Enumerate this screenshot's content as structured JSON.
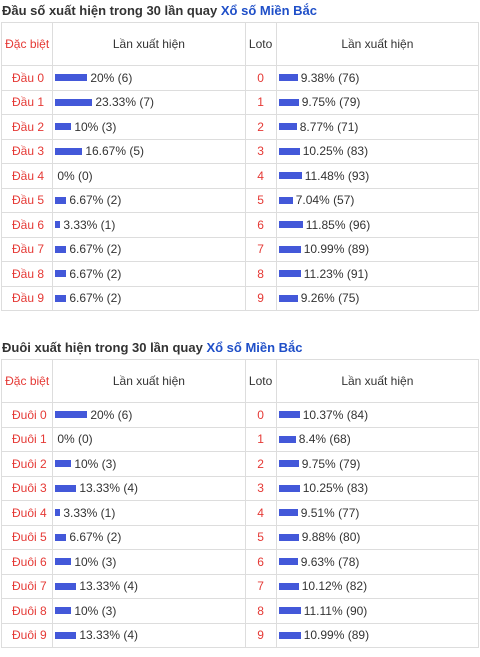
{
  "colors": {
    "label_red": "#e53935",
    "bar_blue": "#4358d9",
    "link_blue": "#1f4fc8",
    "border": "#dddddd"
  },
  "sections": [
    {
      "title_prefix": "Đầu số xuất hiện trong 30 lần quay",
      "title_link": "Xổ số Miền Bắc",
      "headers": {
        "col1": "Đặc biệt",
        "col2": "Lần xuất hiện",
        "col3": "Loto",
        "col4": "Lần xuất hiện"
      },
      "rows": [
        {
          "label": "Đầu 0",
          "pct": 20,
          "text": "20% (6)",
          "loto": "0",
          "pct2": 9.38,
          "text2": "9.38% (76)"
        },
        {
          "label": "Đầu 1",
          "pct": 23.33,
          "text": "23.33% (7)",
          "loto": "1",
          "pct2": 9.75,
          "text2": "9.75% (79)"
        },
        {
          "label": "Đầu 2",
          "pct": 10,
          "text": "10% (3)",
          "loto": "2",
          "pct2": 8.77,
          "text2": "8.77% (71)"
        },
        {
          "label": "Đầu 3",
          "pct": 16.67,
          "text": "16.67% (5)",
          "loto": "3",
          "pct2": 10.25,
          "text2": "10.25% (83)"
        },
        {
          "label": "Đầu 4",
          "pct": 0,
          "text": "0% (0)",
          "loto": "4",
          "pct2": 11.48,
          "text2": "11.48% (93)"
        },
        {
          "label": "Đầu 5",
          "pct": 6.67,
          "text": "6.67% (2)",
          "loto": "5",
          "pct2": 7.04,
          "text2": "7.04% (57)"
        },
        {
          "label": "Đầu 6",
          "pct": 3.33,
          "text": "3.33% (1)",
          "loto": "6",
          "pct2": 11.85,
          "text2": "11.85% (96)"
        },
        {
          "label": "Đầu 7",
          "pct": 6.67,
          "text": "6.67% (2)",
          "loto": "7",
          "pct2": 10.99,
          "text2": "10.99% (89)"
        },
        {
          "label": "Đầu 8",
          "pct": 6.67,
          "text": "6.67% (2)",
          "loto": "8",
          "pct2": 11.23,
          "text2": "11.23% (91)"
        },
        {
          "label": "Đầu 9",
          "pct": 6.67,
          "text": "6.67% (2)",
          "loto": "9",
          "pct2": 9.26,
          "text2": "9.26% (75)"
        }
      ]
    },
    {
      "title_prefix": "Đuôi xuất hiện trong 30 lần quay",
      "title_link": "Xổ số Miền Bắc",
      "headers": {
        "col1": "Đặc biệt",
        "col2": "Lần xuất hiện",
        "col3": "Loto",
        "col4": "Lần xuất hiện"
      },
      "rows": [
        {
          "label": "Đuôi 0",
          "pct": 20,
          "text": "20% (6)",
          "loto": "0",
          "pct2": 10.37,
          "text2": "10.37% (84)"
        },
        {
          "label": "Đuôi 1",
          "pct": 0,
          "text": "0% (0)",
          "loto": "1",
          "pct2": 8.4,
          "text2": "8.4% (68)"
        },
        {
          "label": "Đuôi 2",
          "pct": 10,
          "text": "10% (3)",
          "loto": "2",
          "pct2": 9.75,
          "text2": "9.75% (79)"
        },
        {
          "label": "Đuôi 3",
          "pct": 13.33,
          "text": "13.33% (4)",
          "loto": "3",
          "pct2": 10.25,
          "text2": "10.25% (83)"
        },
        {
          "label": "Đuôi 4",
          "pct": 3.33,
          "text": "3.33% (1)",
          "loto": "4",
          "pct2": 9.51,
          "text2": "9.51% (77)"
        },
        {
          "label": "Đuôi 5",
          "pct": 6.67,
          "text": "6.67% (2)",
          "loto": "5",
          "pct2": 9.88,
          "text2": "9.88% (80)"
        },
        {
          "label": "Đuôi 6",
          "pct": 10,
          "text": "10% (3)",
          "loto": "6",
          "pct2": 9.63,
          "text2": "9.63% (78)"
        },
        {
          "label": "Đuôi 7",
          "pct": 13.33,
          "text": "13.33% (4)",
          "loto": "7",
          "pct2": 10.12,
          "text2": "10.12% (82)"
        },
        {
          "label": "Đuôi 8",
          "pct": 10,
          "text": "10% (3)",
          "loto": "8",
          "pct2": 11.11,
          "text2": "11.11% (90)"
        },
        {
          "label": "Đuôi 9",
          "pct": 13.33,
          "text": "13.33% (4)",
          "loto": "9",
          "pct2": 10.99,
          "text2": "10.99% (89)"
        }
      ]
    }
  ]
}
